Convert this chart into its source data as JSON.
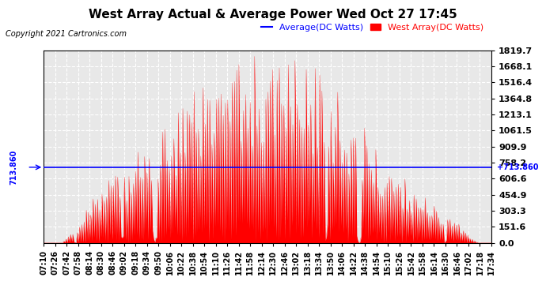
{
  "title": "West Array Actual & Average Power Wed Oct 27 17:45",
  "copyright": "Copyright 2021 Cartronics.com",
  "avg_label": "Average(DC Watts)",
  "west_label": "West Array(DC Watts)",
  "avg_value": 713.86,
  "avg_color": "blue",
  "west_color": "red",
  "left_annotation": "713.860",
  "right_annotation": "+713.860",
  "ylim_min": 0.0,
  "ylim_max": 1819.7,
  "yticks": [
    0.0,
    151.6,
    303.3,
    454.9,
    606.6,
    758.2,
    909.9,
    1061.5,
    1213.1,
    1364.8,
    1516.4,
    1668.1,
    1819.7
  ],
  "plot_bg_color": "#e8e8e8",
  "fig_bg_color": "#ffffff",
  "grid_color": "white",
  "title_fontsize": 11,
  "copyright_fontsize": 7,
  "legend_fontsize": 8,
  "tick_fontsize": 7,
  "ytick_fontsize": 8,
  "x_tick_labels": [
    "07:10",
    "07:26",
    "07:42",
    "07:58",
    "08:14",
    "08:30",
    "08:46",
    "09:02",
    "09:18",
    "09:34",
    "09:50",
    "10:06",
    "10:22",
    "10:38",
    "10:54",
    "11:10",
    "11:26",
    "11:42",
    "11:58",
    "12:14",
    "12:30",
    "12:46",
    "13:02",
    "13:18",
    "13:34",
    "13:50",
    "14:06",
    "14:22",
    "14:38",
    "14:54",
    "15:10",
    "15:26",
    "15:42",
    "15:58",
    "16:14",
    "16:30",
    "16:46",
    "17:02",
    "17:18",
    "17:34"
  ],
  "num_points": 400
}
